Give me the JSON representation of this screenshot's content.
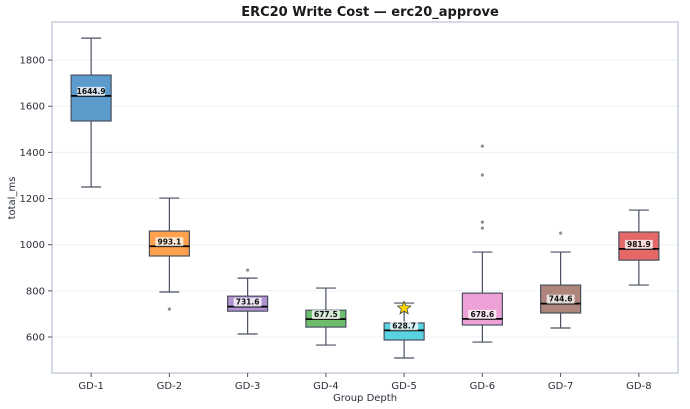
{
  "chart_data": {
    "type": "box",
    "title": "ERC20 Write Cost — erc20_approve",
    "xlabel": "Group Depth",
    "ylabel": "total_ms",
    "ylim": [
      444,
      1965
    ],
    "yticks": [
      600,
      800,
      1000,
      1200,
      1400,
      1600,
      1800
    ],
    "grid": true,
    "categories": [
      "GD-1",
      "GD-2",
      "GD-3",
      "GD-4",
      "GD-5",
      "GD-6",
      "GD-7",
      "GD-8"
    ],
    "boxes": [
      {
        "whislo": 1250,
        "q1": 1536,
        "med": 1644.9,
        "q3": 1735,
        "whishi": 1895,
        "fliers": [],
        "color": "#5b9bcc",
        "label": "1644.9"
      },
      {
        "whislo": 795,
        "q1": 951,
        "med": 993.1,
        "q3": 1059,
        "whishi": 1202,
        "fliers": [
          721
        ],
        "color": "#ffa04d",
        "label": "993.1"
      },
      {
        "whislo": 613,
        "q1": 712,
        "med": 731.6,
        "q3": 777,
        "whishi": 855,
        "fliers": [
          890
        ],
        "color": "#b291d2",
        "label": "731.6"
      },
      {
        "whislo": 565,
        "q1": 643,
        "med": 677.5,
        "q3": 716,
        "whishi": 812,
        "fliers": [],
        "color": "#6cbd6c",
        "label": "677.5"
      },
      {
        "whislo": 509,
        "q1": 587,
        "med": 628.7,
        "q3": 661,
        "whishi": 747,
        "fliers": [],
        "color": "#5ad3e0",
        "label": "628.7",
        "star": 725
      },
      {
        "whislo": 578,
        "q1": 652,
        "med": 678.6,
        "q3": 790,
        "whishi": 968,
        "fliers": [
          1072,
          1098,
          1302,
          1427
        ],
        "color": "#eea1d6",
        "label": "678.6"
      },
      {
        "whislo": 639,
        "q1": 704,
        "med": 744.6,
        "q3": 825,
        "whishi": 968,
        "fliers": [
          1050
        ],
        "color": "#ad857b",
        "label": "744.6"
      },
      {
        "whislo": 825,
        "q1": 933,
        "med": 981.9,
        "q3": 1055,
        "whishi": 1150,
        "fliers": [],
        "color": "#e46868",
        "label": "981.9"
      }
    ],
    "star_color": "#ffd700"
  }
}
